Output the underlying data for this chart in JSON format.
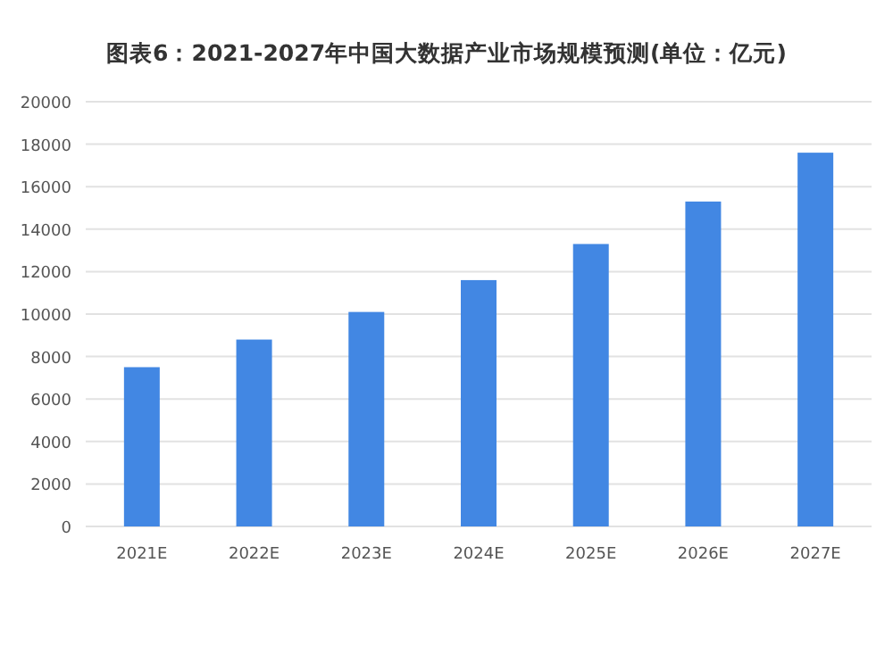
{
  "chart_data": {
    "type": "bar",
    "title": "图表6：2021-2027年中国大数据产业市场规模预测(单位：亿元)",
    "categories": [
      "2021E",
      "2022E",
      "2023E",
      "2024E",
      "2025E",
      "2026E",
      "2027E"
    ],
    "values": [
      7500,
      8800,
      10100,
      11600,
      13300,
      15300,
      17600
    ],
    "color": "#4287e3",
    "ylim": [
      0,
      20000
    ],
    "yticks": [
      0,
      2000,
      4000,
      6000,
      8000,
      10000,
      12000,
      14000,
      16000,
      18000,
      20000
    ],
    "grid": "y"
  }
}
